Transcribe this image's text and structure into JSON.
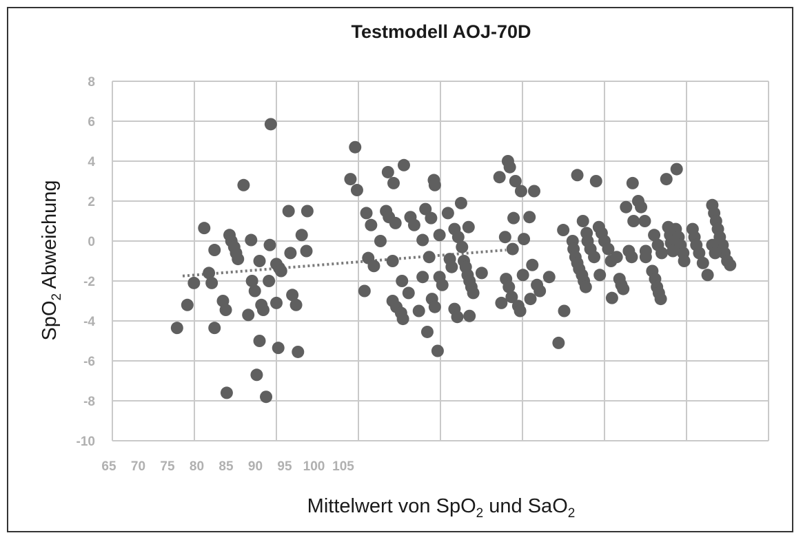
{
  "chart_data": {
    "type": "scatter",
    "title": "Testmodell AOJ-70D",
    "xlabel_parts": [
      "Mittelwert von SpO",
      "2",
      " und SaO",
      "2"
    ],
    "ylabel_parts": [
      "SpO",
      "2",
      " Abweichung"
    ],
    "y_ticks": [
      "8",
      "6",
      "4",
      "2",
      "0",
      "-2",
      "-4",
      "-6",
      "-8",
      "-10"
    ],
    "y_range": [
      -10,
      8
    ],
    "x_ticks": [
      "65",
      "70",
      "75",
      "80",
      "85",
      "90",
      "95",
      "100",
      "105"
    ],
    "grid": true,
    "colors": {
      "points": "#5f5f5f",
      "grid": "#c9c9c9",
      "trend": "#7a7a7a",
      "frame": "#333333"
    },
    "trendline": {
      "x": [
        77.5,
        112
      ],
      "y": [
        -1.75,
        -0.45
      ]
    },
    "series": [
      {
        "points": [
          [
            76.9,
            -4.35
          ],
          [
            78.0,
            -3.2
          ],
          [
            78.7,
            -2.1
          ],
          [
            79.8,
            0.65
          ],
          [
            80.3,
            -1.6
          ],
          [
            80.6,
            -2.1
          ],
          [
            80.9,
            -4.35
          ],
          [
            80.9,
            -0.45
          ],
          [
            81.8,
            -3.0
          ],
          [
            82.1,
            -3.45
          ],
          [
            82.2,
            -7.6
          ],
          [
            82.5,
            0.3
          ],
          [
            82.7,
            0.0
          ],
          [
            83.0,
            -0.3
          ],
          [
            83.2,
            -0.6
          ],
          [
            83.4,
            -0.9
          ],
          [
            84.0,
            2.8
          ],
          [
            84.5,
            -3.7
          ],
          [
            84.8,
            0.05
          ],
          [
            84.9,
            -2.0
          ],
          [
            85.2,
            -2.5
          ],
          [
            85.4,
            -6.7
          ],
          [
            85.7,
            -1.0
          ],
          [
            85.7,
            -5.0
          ],
          [
            85.9,
            -3.2
          ],
          [
            86.1,
            -3.45
          ],
          [
            86.4,
            -7.8
          ],
          [
            86.7,
            -2.0
          ],
          [
            86.8,
            -0.2
          ],
          [
            86.9,
            5.85
          ],
          [
            87.5,
            -1.15
          ],
          [
            87.5,
            -3.1
          ],
          [
            87.7,
            -5.35
          ],
          [
            87.8,
            -1.35
          ],
          [
            88.0,
            -1.5
          ],
          [
            88.8,
            1.5
          ],
          [
            89.0,
            -0.6
          ],
          [
            89.2,
            -2.7
          ],
          [
            89.6,
            -3.2
          ],
          [
            89.8,
            -5.55
          ],
          [
            90.2,
            0.3
          ],
          [
            90.7,
            -0.5
          ],
          [
            90.8,
            1.5
          ],
          [
            95.4,
            3.1
          ],
          [
            95.9,
            4.7
          ],
          [
            96.1,
            2.55
          ],
          [
            96.9,
            -2.5
          ],
          [
            97.1,
            1.4
          ],
          [
            97.3,
            -0.85
          ],
          [
            97.6,
            0.8
          ],
          [
            97.9,
            -1.25
          ],
          [
            98.6,
            0.0
          ],
          [
            99.2,
            1.5
          ],
          [
            99.4,
            3.45
          ],
          [
            99.5,
            1.2
          ],
          [
            99.9,
            -1.0
          ],
          [
            99.9,
            -3.0
          ],
          [
            100.0,
            2.9
          ],
          [
            100.2,
            0.9
          ],
          [
            100.3,
            -3.3
          ],
          [
            100.8,
            -3.6
          ],
          [
            100.9,
            -2.0
          ],
          [
            101.0,
            -3.9
          ],
          [
            101.1,
            3.8
          ],
          [
            101.6,
            -2.6
          ],
          [
            101.8,
            1.2
          ],
          [
            102.2,
            0.8
          ],
          [
            102.7,
            -3.5
          ],
          [
            103.1,
            0.05
          ],
          [
            103.1,
            -1.8
          ],
          [
            103.4,
            1.6
          ],
          [
            103.6,
            -4.55
          ],
          [
            103.8,
            -0.8
          ],
          [
            104.0,
            1.15
          ],
          [
            104.1,
            -2.9
          ],
          [
            104.3,
            3.05
          ],
          [
            104.4,
            -3.3
          ],
          [
            104.4,
            2.8
          ],
          [
            104.7,
            -5.5
          ],
          [
            104.9,
            0.3
          ],
          [
            104.9,
            -1.8
          ],
          [
            105.2,
            -2.2
          ],
          [
            105.8,
            1.4
          ],
          [
            106.0,
            -0.9
          ],
          [
            106.2,
            -1.3
          ],
          [
            106.5,
            0.6
          ],
          [
            106.5,
            -3.4
          ],
          [
            106.8,
            -3.8
          ],
          [
            106.9,
            0.2
          ],
          [
            107.2,
            1.9
          ],
          [
            107.3,
            -0.3
          ],
          [
            107.5,
            -1.0
          ],
          [
            107.7,
            -1.3
          ],
          [
            107.9,
            -1.7
          ],
          [
            108.0,
            0.7
          ],
          [
            108.1,
            -2.0
          ],
          [
            108.1,
            -3.75
          ],
          [
            108.3,
            -2.3
          ],
          [
            108.5,
            -2.6
          ],
          [
            109.4,
            -1.6
          ],
          [
            111.3,
            3.2
          ],
          [
            111.5,
            -3.1
          ],
          [
            111.9,
            0.2
          ],
          [
            112.0,
            -1.9
          ],
          [
            112.2,
            4.0
          ],
          [
            112.3,
            -2.3
          ],
          [
            112.4,
            3.7
          ],
          [
            112.6,
            -2.8
          ],
          [
            112.7,
            -0.4
          ],
          [
            112.8,
            1.15
          ],
          [
            113.0,
            3.0
          ],
          [
            113.3,
            -3.25
          ],
          [
            113.5,
            -3.5
          ],
          [
            113.6,
            2.5
          ],
          [
            113.8,
            -1.7
          ],
          [
            113.9,
            0.1
          ],
          [
            114.5,
            1.2
          ],
          [
            114.6,
            -2.9
          ],
          [
            114.8,
            -1.2
          ],
          [
            115.0,
            2.5
          ],
          [
            115.3,
            -2.2
          ],
          [
            115.6,
            -2.5
          ],
          [
            116.6,
            -1.8
          ],
          [
            117.6,
            -5.1
          ],
          [
            118.1,
            0.55
          ],
          [
            118.2,
            -3.5
          ],
          [
            119.1,
            0.0
          ],
          [
            119.2,
            -0.4
          ],
          [
            119.4,
            -0.8
          ],
          [
            119.6,
            3.3
          ],
          [
            119.6,
            -1.1
          ],
          [
            119.8,
            -1.4
          ],
          [
            120.1,
            -1.7
          ],
          [
            120.2,
            1.0
          ],
          [
            120.3,
            -2.0
          ],
          [
            120.5,
            -2.3
          ],
          [
            120.6,
            0.4
          ],
          [
            120.7,
            0.0
          ],
          [
            121.0,
            -0.4
          ],
          [
            121.4,
            -0.8
          ],
          [
            121.6,
            3.0
          ],
          [
            121.9,
            0.7
          ],
          [
            122.0,
            -1.7
          ],
          [
            122.2,
            0.4
          ],
          [
            122.5,
            0.0
          ],
          [
            122.9,
            -0.4
          ],
          [
            123.2,
            -1.0
          ],
          [
            123.3,
            -2.85
          ],
          [
            123.8,
            -0.8
          ],
          [
            124.1,
            -1.9
          ],
          [
            124.3,
            -2.2
          ],
          [
            124.5,
            -2.4
          ],
          [
            124.8,
            1.7
          ],
          [
            125.1,
            -0.5
          ],
          [
            125.4,
            -0.8
          ],
          [
            125.5,
            2.9
          ],
          [
            125.6,
            1.0
          ],
          [
            126.1,
            2.0
          ],
          [
            126.4,
            1.7
          ],
          [
            126.8,
            1.0
          ],
          [
            126.9,
            -0.5
          ],
          [
            126.9,
            -0.8
          ],
          [
            127.6,
            -1.5
          ],
          [
            127.9,
            -1.9
          ],
          [
            128.1,
            -2.3
          ],
          [
            128.3,
            -2.6
          ],
          [
            128.5,
            -2.9
          ],
          [
            127.8,
            0.3
          ],
          [
            128.2,
            -0.2
          ],
          [
            128.6,
            -0.6
          ],
          [
            129.1,
            3.1
          ],
          [
            129.3,
            0.7
          ],
          [
            129.5,
            0.3
          ],
          [
            129.6,
            -0.1
          ],
          [
            129.8,
            -0.5
          ],
          [
            130.1,
            0.6
          ],
          [
            130.2,
            3.6
          ],
          [
            130.4,
            0.2
          ],
          [
            130.6,
            -0.2
          ],
          [
            130.9,
            -0.6
          ],
          [
            131.0,
            -1.0
          ],
          [
            131.9,
            0.6
          ],
          [
            132.1,
            0.2
          ],
          [
            132.3,
            -0.2
          ],
          [
            132.6,
            -0.6
          ],
          [
            133.0,
            -1.1
          ],
          [
            133.5,
            -1.7
          ],
          [
            134.0,
            1.8
          ],
          [
            134.2,
            1.4
          ],
          [
            134.4,
            1.0
          ],
          [
            134.6,
            0.6
          ],
          [
            134.8,
            0.2
          ],
          [
            135.1,
            -0.2
          ],
          [
            135.3,
            -0.6
          ],
          [
            134.0,
            -0.2
          ],
          [
            134.3,
            -0.6
          ],
          [
            135.6,
            -1.0
          ],
          [
            135.9,
            -1.2
          ]
        ]
      }
    ]
  }
}
